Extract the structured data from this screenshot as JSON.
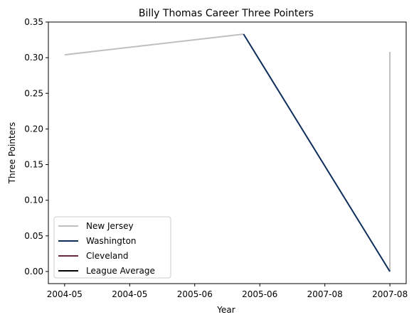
{
  "chart_data": {
    "type": "line",
    "title": "Billy Thomas  Career Three Pointers",
    "xlabel": "Year",
    "ylabel": "Three Pointers",
    "x_tick_labels": [
      "2004-05",
      "2004-05",
      "2005-06",
      "2005-06",
      "2007-08",
      "2007-08"
    ],
    "y_ticks": [
      0.0,
      0.05,
      0.1,
      0.15,
      0.2,
      0.25,
      0.3,
      0.35
    ],
    "y_tick_labels": [
      "0.00",
      "0.05",
      "0.10",
      "0.15",
      "0.20",
      "0.25",
      "0.30",
      "0.35"
    ],
    "xlim": [
      2003.9,
      2006.1
    ],
    "ylim": [
      -0.017,
      0.35
    ],
    "grid": false,
    "legend_position": "lower-left",
    "series": [
      {
        "name": "New Jersey",
        "color": "#bfbfbf",
        "segments": [
          [
            {
              "x": 2004.0,
              "y": 0.304
            },
            {
              "x": 2005.1,
              "y": 0.333
            }
          ],
          [
            {
              "x": 2006.0,
              "y": 0.0
            },
            {
              "x": 2006.0,
              "y": 0.308
            }
          ]
        ]
      },
      {
        "name": "Washington",
        "color": "#0d2e5a",
        "segments": [
          [
            {
              "x": 2005.1,
              "y": 0.333
            },
            {
              "x": 2006.0,
              "y": 0.0
            }
          ]
        ]
      },
      {
        "name": "Cleveland",
        "color": "#6e2a45",
        "segments": []
      },
      {
        "name": "League Average",
        "color": "#000000",
        "segments": []
      }
    ]
  }
}
